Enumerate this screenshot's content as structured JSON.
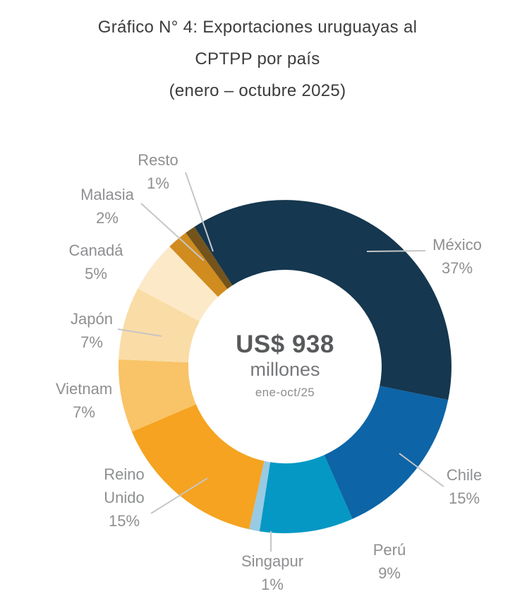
{
  "title": {
    "line1": "Gráfico N° 4: Exportaciones uruguayas al",
    "line2": "CPTPP por país",
    "line3": "(enero – octubre 2025)"
  },
  "chart_data": {
    "type": "pie",
    "subtype": "donut",
    "title": "Gráfico N° 4: Exportaciones uruguayas al CPTPP por país (enero – octubre 2025)",
    "unit": "%",
    "start_angle_deg": -33,
    "labels_layout": "outside-with-leader-lines",
    "center": {
      "value": "US$ 938",
      "unit": "millones",
      "period": "ene-oct/25"
    },
    "segments": [
      {
        "id": "mexico",
        "label": "México",
        "pct": 37,
        "pct_label": "37%",
        "color": "#15374f"
      },
      {
        "id": "chile",
        "label": "Chile",
        "pct": 15,
        "pct_label": "15%",
        "color": "#0d64a6"
      },
      {
        "id": "peru",
        "label": "Perú",
        "pct": 9,
        "pct_label": "9%",
        "color": "#0598c5"
      },
      {
        "id": "singapur",
        "label": "Singapur",
        "pct": 1,
        "pct_label": "1%",
        "color": "#98cae3"
      },
      {
        "id": "reino",
        "label": "Reino Unido",
        "pct": 15,
        "pct_label": "15%",
        "color": "#f5a320"
      },
      {
        "id": "vietnam",
        "label": "Vietnam",
        "pct": 7,
        "pct_label": "7%",
        "color": "#f9c367"
      },
      {
        "id": "japon",
        "label": "Japón",
        "pct": 7,
        "pct_label": "7%",
        "color": "#fadca6"
      },
      {
        "id": "canada",
        "label": "Canadá",
        "pct": 5,
        "pct_label": "5%",
        "color": "#fce9c8"
      },
      {
        "id": "malasia",
        "label": "Malasia",
        "pct": 2,
        "pct_label": "2%",
        "color": "#d08c1e"
      },
      {
        "id": "resto",
        "label": "Resto",
        "pct": 1,
        "pct_label": "1%",
        "color": "#75541c"
      }
    ],
    "leader_line_color": "#c6c6c6"
  }
}
